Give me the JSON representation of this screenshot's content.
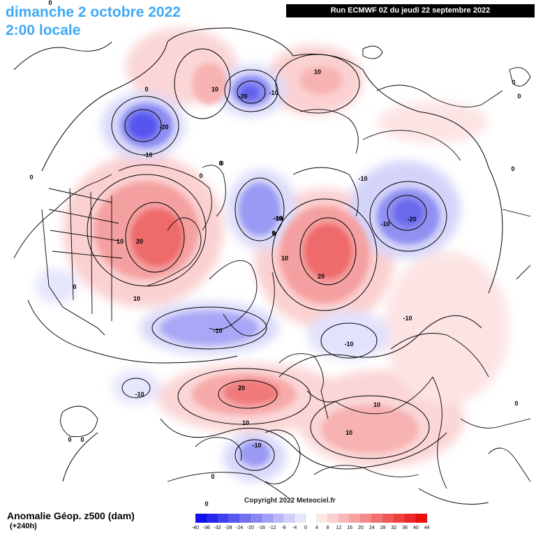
{
  "header": {
    "date": "dimanche 2 octobre 2022",
    "time": "2:00 locale",
    "run": "Run ECMWF 0Z du jeudi 22 septembre 2022"
  },
  "footer": {
    "parameter": "Anomalie Géop. z500 (dam)",
    "lead": "(+240h)",
    "copyright": "Copyright 2022 Meteociel.fr"
  },
  "legend": {
    "ticks": [
      "-40",
      "-36",
      "-32",
      "-28",
      "-24",
      "-20",
      "-16",
      "-12",
      "-8",
      "-4",
      "0",
      "4",
      "8",
      "12",
      "16",
      "20",
      "24",
      "28",
      "32",
      "36",
      "40",
      "44"
    ],
    "colors": [
      "#1010f0",
      "#2828f0",
      "#4040f0",
      "#5858f0",
      "#7070f0",
      "#8888f4",
      "#a0a0f6",
      "#b8b8f8",
      "#d0d0fa",
      "#e6e6fc",
      "#ffffff",
      "#fde6e6",
      "#fbd0d0",
      "#f9b8b8",
      "#f7a0a0",
      "#f58888",
      "#f37070",
      "#f15858",
      "#ef4040",
      "#ed2828",
      "#eb1010"
    ]
  },
  "contour_labels": [
    "0",
    "-20",
    "-10",
    "10",
    "-20",
    "-10",
    "10",
    "0",
    "0",
    "-10",
    "0",
    "-10",
    "-20",
    "-10",
    "10",
    "20",
    "-10",
    "0",
    "10",
    "20",
    "10",
    "0",
    "-10",
    "-10",
    "-10",
    "10",
    "0",
    "20",
    "10",
    "-10",
    "10",
    "0",
    "-10",
    "0",
    "0",
    "0",
    "0",
    "0",
    "0",
    "0",
    "0",
    "0"
  ],
  "anomalies": [
    {
      "sign": "neg",
      "level": "-20",
      "label": "-20"
    },
    {
      "sign": "neg",
      "level": "-20",
      "label": "-20"
    },
    {
      "sign": "neg",
      "level": "-20",
      "label": "-20"
    },
    {
      "sign": "pos",
      "level": "20",
      "label": "20"
    },
    {
      "sign": "pos",
      "level": "20",
      "label": "20"
    },
    {
      "sign": "pos",
      "level": "20",
      "label": "20"
    }
  ]
}
